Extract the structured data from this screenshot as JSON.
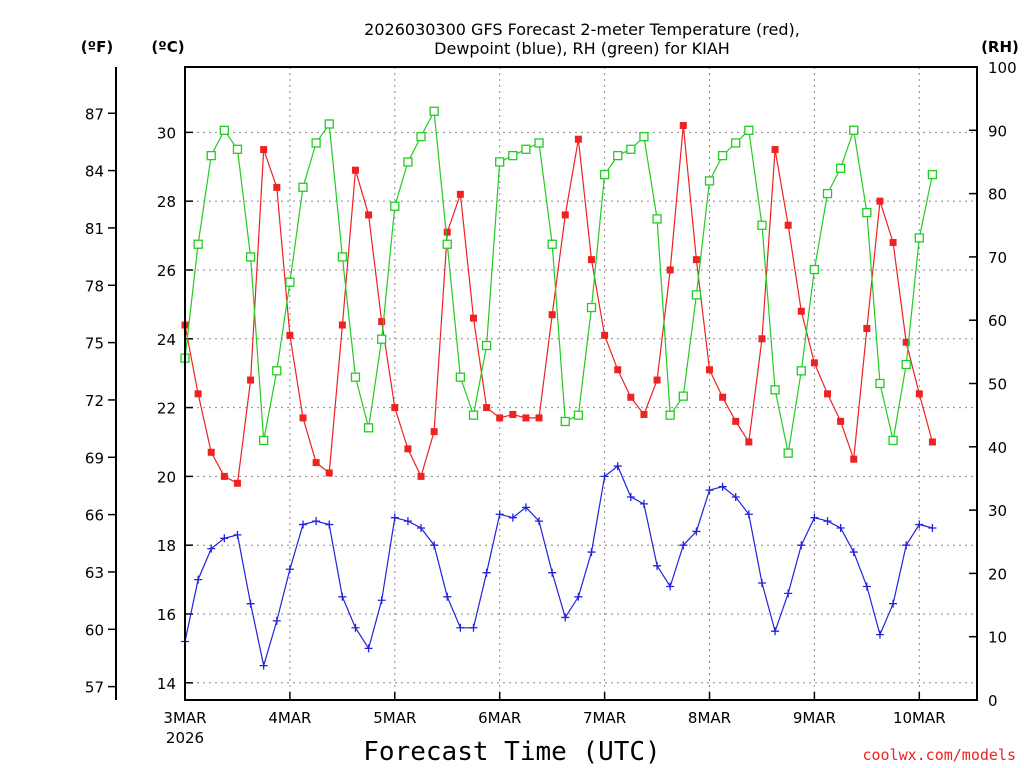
{
  "title_lines": [
    "2026030300 GFS Forecast 2-meter Temperature (red),",
    "Dewpoint (blue), RH (green) for KIAH"
  ],
  "units": {
    "fahrenheit": "(ºF)",
    "celsius": "(ºC)",
    "rh": "(RH)"
  },
  "credit": "coolwx.com/models",
  "colors": {
    "temperature": "#ee2222",
    "dewpoint": "#2222dd",
    "rh": "#22cc22",
    "credit": "#ee2222"
  },
  "chart_data": {
    "type": "line",
    "title": "2026030300 GFS Forecast 2-meter Temperature (red), Dewpoint (blue), RH (green) for KIAH",
    "xlabel": "Forecast Time (UTC)",
    "x_unit": "days since 2026-03-03 00 UTC",
    "xlim": [
      0,
      7.55
    ],
    "x_ticks": [
      {
        "value": 0,
        "label": "3MAR",
        "sublabel": "2026"
      },
      {
        "value": 1,
        "label": "4MAR"
      },
      {
        "value": 2,
        "label": "5MAR"
      },
      {
        "value": 3,
        "label": "6MAR"
      },
      {
        "value": 4,
        "label": "7MAR"
      },
      {
        "value": 5,
        "label": "8MAR"
      },
      {
        "value": 6,
        "label": "9MAR"
      },
      {
        "value": 7,
        "label": "10MAR"
      }
    ],
    "left_axis_c": {
      "label": "(ºC)",
      "range": [
        13.5,
        31.9
      ],
      "ticks": [
        14,
        16,
        18,
        20,
        22,
        24,
        26,
        28,
        30
      ]
    },
    "left_axis_f": {
      "label": "(ºF)",
      "ticks": [
        57,
        60,
        63,
        66,
        69,
        72,
        75,
        78,
        81,
        84,
        87
      ]
    },
    "right_axis_rh": {
      "label": "(RH)",
      "range": [
        0,
        100
      ],
      "ticks": [
        0,
        10,
        20,
        30,
        40,
        50,
        60,
        70,
        80,
        90,
        100
      ]
    },
    "series": [
      {
        "name": "Temperature (red)",
        "unit": "C",
        "marker": "square-filled",
        "points": [
          [
            0,
            24.4
          ],
          [
            0.125,
            22.4
          ],
          [
            0.25,
            20.7
          ],
          [
            0.375,
            20.0
          ],
          [
            0.5,
            19.8
          ],
          [
            0.625,
            22.8
          ],
          [
            0.75,
            29.5
          ],
          [
            0.875,
            28.4
          ],
          [
            1.0,
            24.1
          ],
          [
            1.125,
            21.7
          ],
          [
            1.25,
            20.4
          ],
          [
            1.375,
            20.1
          ],
          [
            1.5,
            24.4
          ],
          [
            1.625,
            28.9
          ],
          [
            1.75,
            27.6
          ],
          [
            1.875,
            24.5
          ],
          [
            2.0,
            22.0
          ],
          [
            2.125,
            20.8
          ],
          [
            2.25,
            20.0
          ],
          [
            2.375,
            21.3
          ],
          [
            2.5,
            27.1
          ],
          [
            2.625,
            28.2
          ],
          [
            2.75,
            24.6
          ],
          [
            2.875,
            22.0
          ],
          [
            3.0,
            21.7
          ],
          [
            3.125,
            21.8
          ],
          [
            3.25,
            21.7
          ],
          [
            3.375,
            21.7
          ],
          [
            3.5,
            24.7
          ],
          [
            3.625,
            27.6
          ],
          [
            3.75,
            29.8
          ],
          [
            3.875,
            26.3
          ],
          [
            4.0,
            24.1
          ],
          [
            4.125,
            23.1
          ],
          [
            4.25,
            22.3
          ],
          [
            4.375,
            21.8
          ],
          [
            4.5,
            22.8
          ],
          [
            4.625,
            26.0
          ],
          [
            4.75,
            30.2
          ],
          [
            4.875,
            26.3
          ],
          [
            5.0,
            23.1
          ],
          [
            5.125,
            22.3
          ],
          [
            5.25,
            21.6
          ],
          [
            5.375,
            21.0
          ],
          [
            5.5,
            24.0
          ],
          [
            5.625,
            29.5
          ],
          [
            5.75,
            27.3
          ],
          [
            5.875,
            24.8
          ],
          [
            6.0,
            23.3
          ],
          [
            6.125,
            22.4
          ],
          [
            6.25,
            21.6
          ],
          [
            6.375,
            20.5
          ],
          [
            6.5,
            24.3
          ],
          [
            6.625,
            28.0
          ],
          [
            6.75,
            26.8
          ],
          [
            6.875,
            23.9
          ],
          [
            7.0,
            22.4
          ],
          [
            7.125,
            21.0
          ]
        ]
      },
      {
        "name": "Dewpoint (blue)",
        "unit": "C",
        "marker": "plus",
        "points": [
          [
            0,
            15.2
          ],
          [
            0.125,
            17.0
          ],
          [
            0.25,
            17.9
          ],
          [
            0.375,
            18.2
          ],
          [
            0.5,
            18.3
          ],
          [
            0.625,
            16.3
          ],
          [
            0.75,
            14.5
          ],
          [
            0.875,
            15.8
          ],
          [
            1.0,
            17.3
          ],
          [
            1.125,
            18.6
          ],
          [
            1.25,
            18.7
          ],
          [
            1.375,
            18.6
          ],
          [
            1.5,
            16.5
          ],
          [
            1.625,
            15.6
          ],
          [
            1.75,
            15.0
          ],
          [
            1.875,
            16.4
          ],
          [
            2.0,
            18.8
          ],
          [
            2.125,
            18.7
          ],
          [
            2.25,
            18.5
          ],
          [
            2.375,
            18.0
          ],
          [
            2.5,
            16.5
          ],
          [
            2.625,
            15.6
          ],
          [
            2.75,
            15.6
          ],
          [
            2.875,
            17.2
          ],
          [
            3.0,
            18.9
          ],
          [
            3.125,
            18.8
          ],
          [
            3.25,
            19.1
          ],
          [
            3.375,
            18.7
          ],
          [
            3.5,
            17.2
          ],
          [
            3.625,
            15.9
          ],
          [
            3.75,
            16.5
          ],
          [
            3.875,
            17.8
          ],
          [
            4.0,
            20.0
          ],
          [
            4.125,
            20.3
          ],
          [
            4.25,
            19.4
          ],
          [
            4.375,
            19.2
          ],
          [
            4.5,
            17.4
          ],
          [
            4.625,
            16.8
          ],
          [
            4.75,
            18.0
          ],
          [
            4.875,
            18.4
          ],
          [
            5.0,
            19.6
          ],
          [
            5.125,
            19.7
          ],
          [
            5.25,
            19.4
          ],
          [
            5.375,
            18.9
          ],
          [
            5.5,
            16.9
          ],
          [
            5.625,
            15.5
          ],
          [
            5.75,
            16.6
          ],
          [
            5.875,
            18.0
          ],
          [
            6.0,
            18.8
          ],
          [
            6.125,
            18.7
          ],
          [
            6.25,
            18.5
          ],
          [
            6.375,
            17.8
          ],
          [
            6.5,
            16.8
          ],
          [
            6.625,
            15.4
          ],
          [
            6.75,
            16.3
          ],
          [
            6.875,
            18.0
          ],
          [
            7.0,
            18.6
          ],
          [
            7.125,
            18.5
          ]
        ]
      },
      {
        "name": "RH (green)",
        "unit": "%",
        "marker": "square-open",
        "points": [
          [
            0,
            54
          ],
          [
            0.125,
            72
          ],
          [
            0.25,
            86
          ],
          [
            0.375,
            90
          ],
          [
            0.5,
            87
          ],
          [
            0.625,
            70
          ],
          [
            0.75,
            41
          ],
          [
            0.875,
            52
          ],
          [
            1.0,
            66
          ],
          [
            1.125,
            81
          ],
          [
            1.25,
            88
          ],
          [
            1.375,
            91
          ],
          [
            1.5,
            70
          ],
          [
            1.625,
            51
          ],
          [
            1.75,
            43
          ],
          [
            1.875,
            57
          ],
          [
            2.0,
            78
          ],
          [
            2.125,
            85
          ],
          [
            2.25,
            89
          ],
          [
            2.375,
            93
          ],
          [
            2.5,
            72
          ],
          [
            2.625,
            51
          ],
          [
            2.75,
            45
          ],
          [
            2.875,
            56
          ],
          [
            3.0,
            85
          ],
          [
            3.125,
            86
          ],
          [
            3.25,
            87
          ],
          [
            3.375,
            88
          ],
          [
            3.5,
            72
          ],
          [
            3.625,
            44
          ],
          [
            3.75,
            45
          ],
          [
            3.875,
            62
          ],
          [
            4.0,
            83
          ],
          [
            4.125,
            86
          ],
          [
            4.25,
            87
          ],
          [
            4.375,
            89
          ],
          [
            4.5,
            76
          ],
          [
            4.625,
            45
          ],
          [
            4.75,
            48
          ],
          [
            4.875,
            64
          ],
          [
            5.0,
            82
          ],
          [
            5.125,
            86
          ],
          [
            5.25,
            88
          ],
          [
            5.375,
            90
          ],
          [
            5.5,
            75
          ],
          [
            5.625,
            49
          ],
          [
            5.75,
            39
          ],
          [
            5.875,
            52
          ],
          [
            6.0,
            68
          ],
          [
            6.125,
            80
          ],
          [
            6.25,
            84
          ],
          [
            6.375,
            90
          ],
          [
            6.5,
            77
          ],
          [
            6.625,
            50
          ],
          [
            6.75,
            41
          ],
          [
            6.875,
            53
          ],
          [
            7.0,
            73
          ],
          [
            7.125,
            83
          ]
        ]
      }
    ]
  }
}
